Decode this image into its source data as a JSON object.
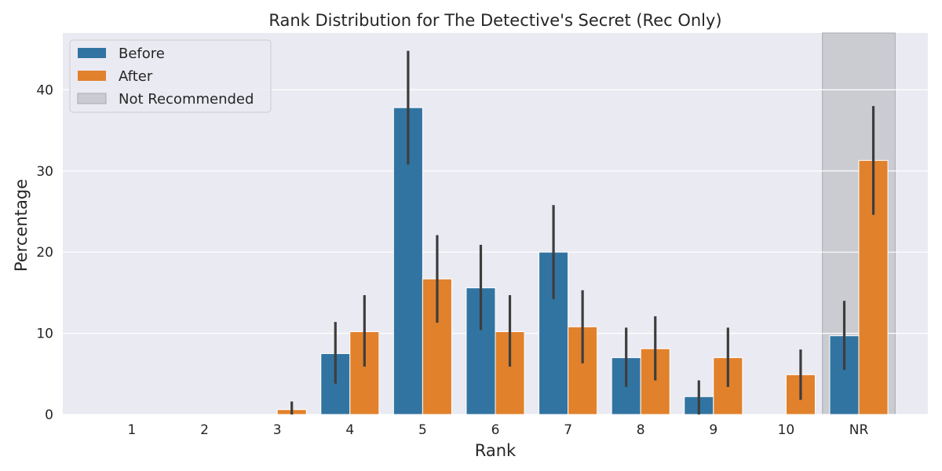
{
  "chart_data": {
    "type": "bar",
    "title": "Rank Distribution for The Detective's Secret (Rec Only)",
    "xlabel": "Rank",
    "ylabel": "Percentage",
    "categories": [
      "1",
      "2",
      "3",
      "4",
      "5",
      "6",
      "7",
      "8",
      "9",
      "10",
      "NR"
    ],
    "ylim": [
      0,
      47
    ],
    "yticks": [
      0,
      10,
      20,
      30,
      40
    ],
    "grid": true,
    "legend_position": "top-left",
    "series": [
      {
        "name": "Before",
        "color": "#3274a1",
        "values": [
          0,
          0,
          0,
          7.5,
          37.8,
          15.6,
          20.0,
          7.0,
          2.2,
          0,
          9.7
        ],
        "ci_low": [
          null,
          null,
          null,
          3.8,
          30.8,
          10.4,
          14.2,
          3.4,
          0,
          null,
          5.5
        ],
        "ci_high": [
          null,
          null,
          null,
          11.4,
          44.8,
          20.9,
          25.8,
          10.7,
          4.2,
          null,
          14.0
        ]
      },
      {
        "name": "After",
        "color": "#e1812c",
        "values": [
          0,
          0,
          0.6,
          10.2,
          16.7,
          10.2,
          10.8,
          8.1,
          7.0,
          4.9,
          31.3
        ],
        "ci_low": [
          null,
          null,
          0,
          5.9,
          11.3,
          5.9,
          6.3,
          4.2,
          3.4,
          1.8,
          24.6
        ],
        "ci_high": [
          null,
          null,
          1.6,
          14.7,
          22.1,
          14.7,
          15.3,
          12.1,
          10.7,
          8.0,
          38.0
        ]
      }
    ],
    "highlight": {
      "name": "Not Recommended",
      "category": "NR",
      "color": "#b0b0b8"
    }
  }
}
